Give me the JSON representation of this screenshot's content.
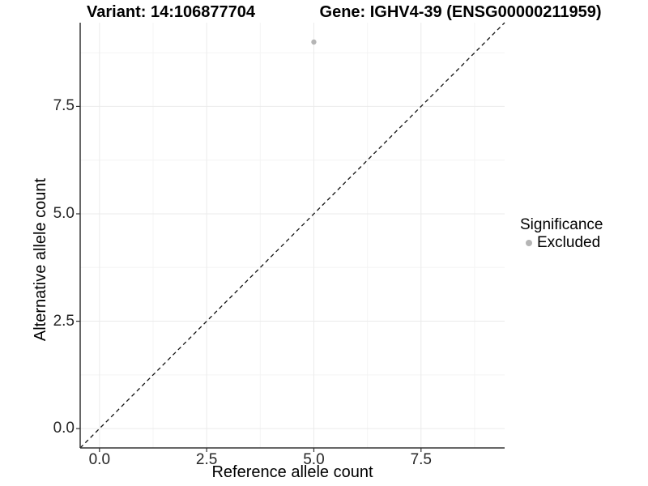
{
  "figure": {
    "titles": {
      "variant": "Variant: 14:106877704",
      "gene": "Gene: IGHV4-39 (ENSG00000211959)"
    },
    "axes": {
      "xlabel": "Reference allele count",
      "ylabel": "Alternative allele count"
    },
    "legend": {
      "title": "Significance",
      "items": [
        {
          "label": "Excluded",
          "color": "#b5b5b5"
        }
      ]
    }
  },
  "chart_data": {
    "type": "scatter",
    "title": "Variant: 14:106877704   Gene: IGHV4-39 (ENSG00000211959)",
    "xlabel": "Reference allele count",
    "ylabel": "Alternative allele count",
    "xlim": [
      -0.45,
      9.45
    ],
    "ylim": [
      -0.45,
      9.45
    ],
    "x_ticks": [
      0,
      2.5,
      5,
      7.5
    ],
    "x_tick_labels": [
      "0.0",
      "2.5",
      "5.0",
      "7.5"
    ],
    "y_ticks": [
      0,
      2.5,
      5,
      7.5
    ],
    "y_tick_labels": [
      "0.0",
      "2.5",
      "5.0",
      "7.5"
    ],
    "minor_ticks": [
      1.25,
      3.75,
      6.25,
      8.75
    ],
    "grid": "major+minor",
    "legend_position": "right",
    "series": [
      {
        "name": "Excluded",
        "color": "#b5b5b5",
        "points": [
          {
            "x": 5,
            "y": 9
          }
        ]
      }
    ],
    "reference_line": {
      "type": "identity",
      "slope": 1,
      "intercept": 0,
      "style": "dashed",
      "color": "#111111"
    },
    "colors": {
      "grid_major": "#ebebeb",
      "grid_minor": "#f4f4f4",
      "axis_line": "#333333",
      "point": "#b5b5b5",
      "tick_text": "#262626"
    }
  }
}
